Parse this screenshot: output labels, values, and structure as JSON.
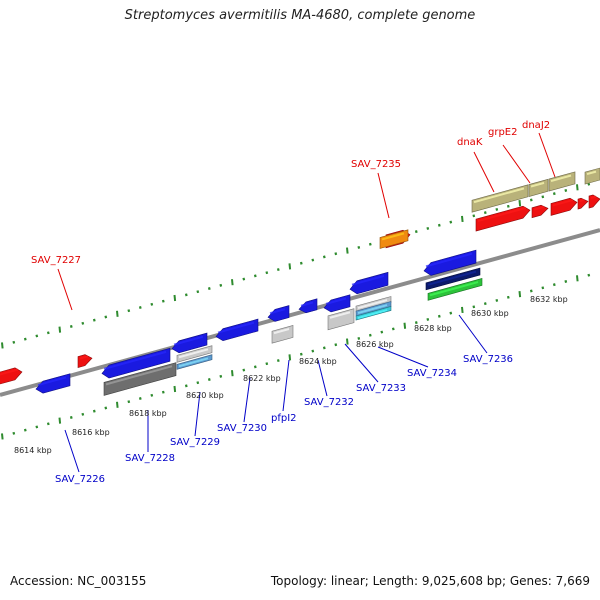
{
  "title": "Streptomyces avermitilis MA-4680, complete genome",
  "footer": {
    "accession": "Accession: NC_003155",
    "summary": "Topology: linear; Length: 9,025,608 bp; Genes: 7,669"
  },
  "colors": {
    "backbone": "#8c8c8c",
    "tick": "#2e8b2e",
    "label_top": "#e00000",
    "label_bottom": "#0000c8"
  },
  "kbp_labels": [
    "8614 kbp",
    "8616 kbp",
    "8618 kbp",
    "8620 kbp",
    "8622 kbp",
    "8624 kbp",
    "8626 kbp",
    "8628 kbp",
    "8630 kbp",
    "8632 kbp"
  ],
  "genes_top": [
    "SAV_7227",
    "SAV_7235",
    "dnaK",
    "grpE2",
    "dnaJ2"
  ],
  "genes_bottom": [
    "SAV_7226",
    "SAV_7228",
    "SAV_7229",
    "SAV_7230",
    "pfpI2",
    "SAV_7232",
    "SAV_7233",
    "SAV_7234",
    "SAV_7236"
  ]
}
